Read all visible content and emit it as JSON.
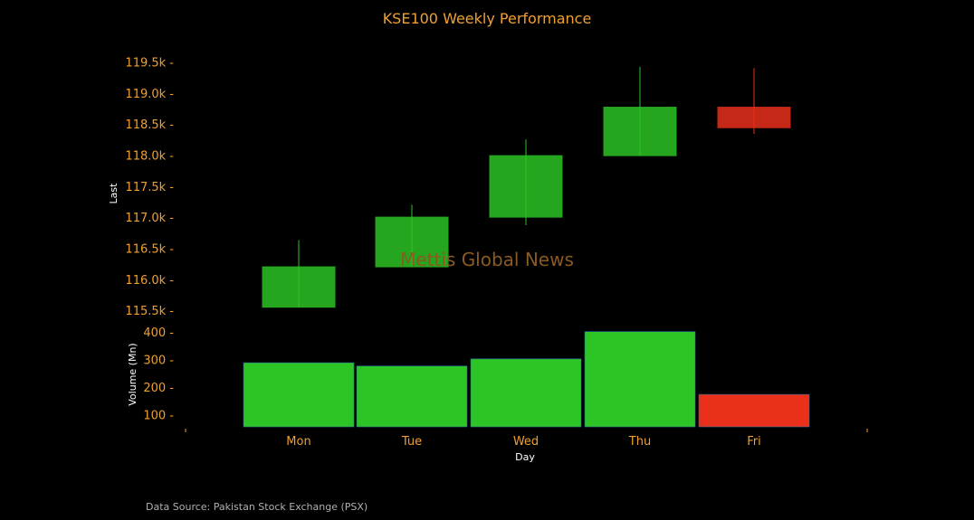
{
  "chart_data": {
    "type": "candlestick",
    "title": "KSE100 Weekly Performance",
    "xlabel": "Day",
    "categories": [
      "Mon",
      "Tue",
      "Wed",
      "Thu",
      "Fri"
    ],
    "price": {
      "ylabel": "Last",
      "ylim": [
        115400,
        119550
      ],
      "ticks": [
        "115.5k",
        "116.0k",
        "116.5k",
        "117.0k",
        "117.5k",
        "118.0k",
        "118.5k",
        "119.0k",
        "119.5k"
      ],
      "tick_values": [
        115500,
        116000,
        116500,
        117000,
        117500,
        118000,
        118500,
        119000,
        119500
      ],
      "candles": [
        {
          "day": "Mon",
          "open": 115550,
          "close": 116200,
          "high": 116630,
          "low": 115550
        },
        {
          "day": "Tue",
          "open": 116200,
          "close": 117000,
          "high": 117200,
          "low": 116200
        },
        {
          "day": "Wed",
          "open": 117000,
          "close": 117990,
          "high": 118250,
          "low": 116870
        },
        {
          "day": "Thu",
          "open": 117990,
          "close": 118770,
          "high": 119420,
          "low": 117990
        },
        {
          "day": "Fri",
          "open": 118770,
          "close": 118440,
          "high": 119400,
          "low": 118340
        }
      ]
    },
    "volume": {
      "ylabel": "Volume (Mn)",
      "ylim": [
        55,
        400
      ],
      "ticks": [
        "100",
        "200",
        "300",
        "400"
      ],
      "tick_values": [
        100,
        200,
        300,
        400
      ],
      "values": [
        288,
        276,
        302,
        401,
        173
      ]
    },
    "colors": {
      "up": "#2dc425",
      "down": "#e8301a",
      "background": "#000000",
      "text": "#f0a030"
    },
    "watermark": "Mettis Global News",
    "source": "Data Source: Pakistan Stock Exchange (PSX)",
    "grid": false
  }
}
